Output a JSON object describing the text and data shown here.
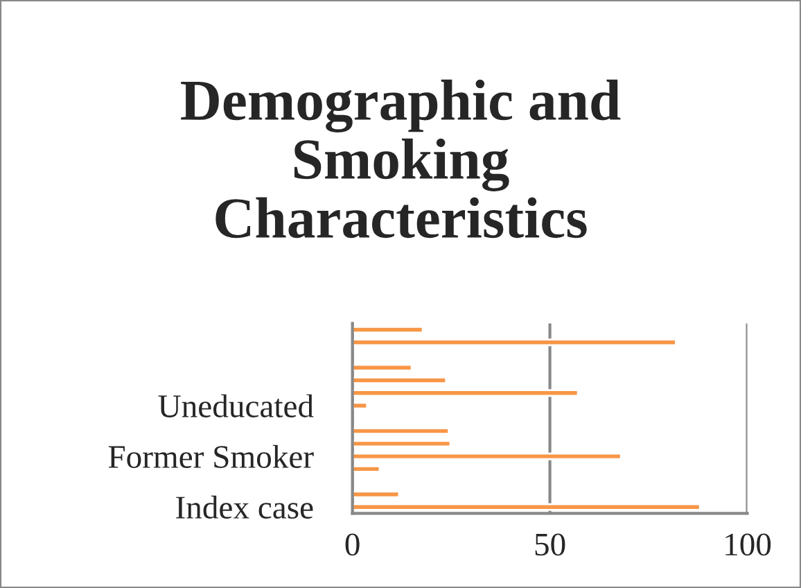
{
  "chart_data": {
    "type": "bar",
    "orientation": "horizontal",
    "title": "Demographic and Smoking Characteristics",
    "categories": [
      null,
      null,
      null,
      null,
      null,
      null,
      "Uneducated",
      null,
      null,
      null,
      "Former Smoker",
      null,
      null,
      null,
      "Index case"
    ],
    "values": [
      17.8,
      81.9,
      null,
      15.0,
      23.7,
      57.1,
      3.7,
      null,
      24.4,
      24.8,
      68.0,
      6.9,
      null,
      11.8,
      88.0
    ],
    "color": "#f79646",
    "xlim": [
      0,
      100
    ],
    "xticks": [
      0,
      50,
      100
    ],
    "grid": "x"
  }
}
